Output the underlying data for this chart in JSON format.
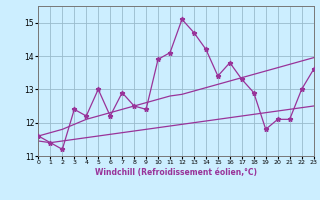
{
  "x": [
    0,
    1,
    2,
    3,
    4,
    5,
    6,
    7,
    8,
    9,
    10,
    11,
    12,
    13,
    14,
    15,
    16,
    17,
    18,
    19,
    20,
    21,
    22,
    23
  ],
  "y_main": [
    11.6,
    11.4,
    11.2,
    12.4,
    12.2,
    13.0,
    12.2,
    12.9,
    12.5,
    12.4,
    13.9,
    14.1,
    15.1,
    14.7,
    14.2,
    13.4,
    13.8,
    13.3,
    12.9,
    11.8,
    12.1,
    12.1,
    13.0,
    13.6
  ],
  "y_upper": [
    11.6,
    11.7,
    11.8,
    11.95,
    12.1,
    12.2,
    12.3,
    12.4,
    12.5,
    12.6,
    12.7,
    12.8,
    12.85,
    12.95,
    13.05,
    13.15,
    13.25,
    13.35,
    13.45,
    13.55,
    13.65,
    13.75,
    13.85,
    13.95
  ],
  "y_lower": [
    11.45,
    11.4,
    11.45,
    11.5,
    11.55,
    11.6,
    11.65,
    11.7,
    11.75,
    11.8,
    11.85,
    11.9,
    11.95,
    12.0,
    12.05,
    12.1,
    12.15,
    12.2,
    12.25,
    12.3,
    12.35,
    12.4,
    12.45,
    12.5
  ],
  "line_color": "#993399",
  "background_color": "#cceeff",
  "grid_color": "#99bbcc",
  "xlabel": "Windchill (Refroidissement éolien,°C)",
  "xlim": [
    0,
    23
  ],
  "ylim": [
    11.0,
    15.5
  ],
  "yticks": [
    11,
    12,
    13,
    14,
    15
  ],
  "xticks": [
    0,
    1,
    2,
    3,
    4,
    5,
    6,
    7,
    8,
    9,
    10,
    11,
    12,
    13,
    14,
    15,
    16,
    17,
    18,
    19,
    20,
    21,
    22,
    23
  ]
}
